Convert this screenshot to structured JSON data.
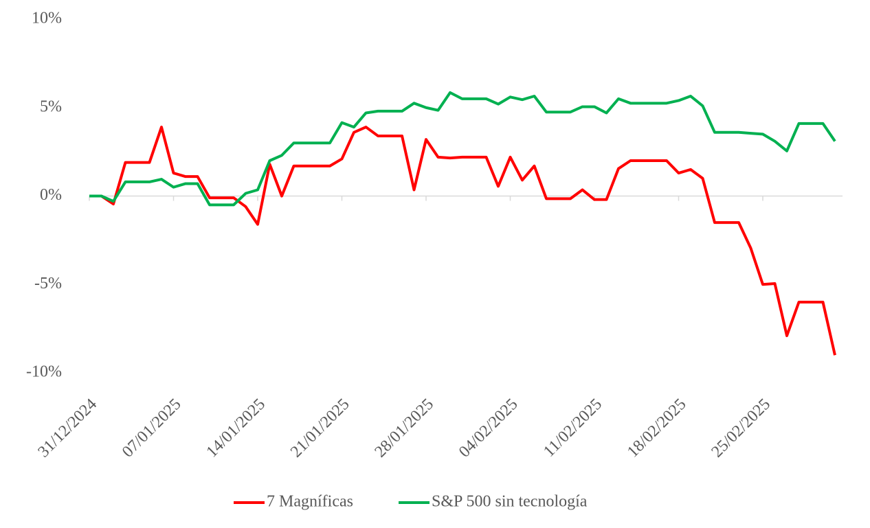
{
  "chart_data": {
    "type": "line",
    "categories": [
      "31/12/2024",
      null,
      null,
      null,
      null,
      null,
      null,
      "07/01/2025",
      null,
      null,
      null,
      null,
      null,
      null,
      "14/01/2025",
      null,
      null,
      null,
      null,
      null,
      null,
      "21/01/2025",
      null,
      null,
      null,
      null,
      null,
      null,
      "28/01/2025",
      null,
      null,
      null,
      null,
      null,
      null,
      "04/02/2025",
      null,
      null,
      null,
      null,
      null,
      null,
      "11/02/2025",
      null,
      null,
      null,
      null,
      null,
      null,
      "18/02/2025",
      null,
      null,
      null,
      null,
      null,
      null,
      "25/02/2025",
      null,
      null,
      null,
      null,
      null,
      null
    ],
    "series": [
      {
        "name": "7 Magníficas",
        "color": "#ff0000",
        "values": [
          0,
          0,
          -0.45,
          1.9,
          1.9,
          1.9,
          3.9,
          1.3,
          1.1,
          1.1,
          -0.1,
          -0.1,
          -0.1,
          -0.6,
          -1.6,
          1.8,
          0,
          1.7,
          1.7,
          1.7,
          1.7,
          2.1,
          3.6,
          3.9,
          3.4,
          3.4,
          3.4,
          0.35,
          3.2,
          2.2,
          2.15,
          2.2,
          2.2,
          2.2,
          0.55,
          2.2,
          0.9,
          1.7,
          -0.15,
          -0.15,
          -0.15,
          0.35,
          -0.2,
          -0.2,
          1.55,
          2.0,
          2.0,
          2.0,
          2.0,
          1.3,
          1.5,
          1.0,
          -1.5,
          -1.5,
          -1.5,
          -2.95,
          -5.0,
          -4.95,
          -7.9,
          -6.0,
          -6.0,
          -6.0,
          -9.0
        ]
      },
      {
        "name": "S&P 500 sin tecnología",
        "color": "#00b050",
        "values": [
          0,
          0,
          -0.3,
          0.8,
          0.8,
          0.8,
          0.95,
          0.5,
          0.7,
          0.7,
          -0.5,
          -0.5,
          -0.5,
          0.15,
          0.35,
          2.0,
          2.3,
          3.0,
          3.0,
          3.0,
          3.0,
          4.15,
          3.9,
          4.7,
          4.8,
          4.8,
          4.8,
          5.25,
          5.0,
          4.85,
          5.85,
          5.5,
          5.5,
          5.5,
          5.2,
          5.6,
          5.45,
          5.65,
          4.75,
          4.75,
          4.75,
          5.05,
          5.05,
          4.7,
          5.5,
          5.25,
          5.25,
          5.25,
          5.25,
          5.4,
          5.65,
          5.1,
          3.6,
          3.6,
          3.6,
          3.55,
          3.5,
          3.1,
          2.55,
          4.1,
          4.1,
          4.1,
          3.1
        ]
      }
    ],
    "ylim": [
      -10,
      10
    ],
    "yticks": [
      {
        "value": -10,
        "label": "-10%"
      },
      {
        "value": -5,
        "label": "-5%"
      },
      {
        "value": 0,
        "label": "0%"
      },
      {
        "value": 5,
        "label": "5%"
      },
      {
        "value": 10,
        "label": "10%"
      }
    ],
    "grid": false,
    "legend": "bottom"
  }
}
